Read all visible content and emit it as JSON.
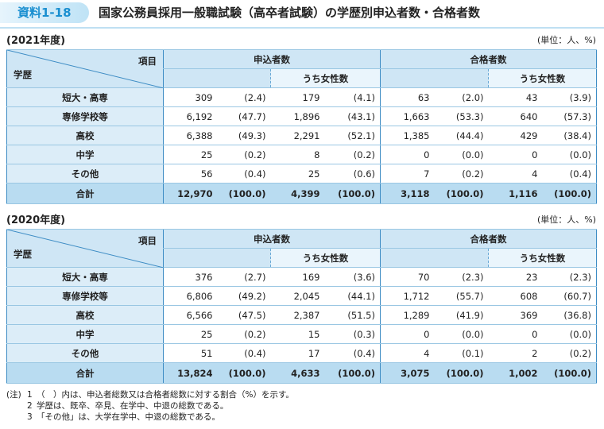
{
  "header": {
    "badge": "資料1-18",
    "title": "国家公務員採用一般職試験（高卒者試験）の学歴別申込者数・合格者数"
  },
  "tables": [
    {
      "year": "(2021年度)",
      "unit": "(単位：人、%)",
      "header": {
        "item": "項目",
        "category": "学歴",
        "applicants": "申込者数",
        "female_applicants": "うち女性数",
        "passers": "合格者数",
        "female_passers": "うち女性数"
      },
      "rows": [
        {
          "label": "短大・高専",
          "cells": [
            "309",
            "(2.4)",
            "179",
            "(4.1)",
            "63",
            "(2.0)",
            "43",
            "(3.9)"
          ]
        },
        {
          "label": "専修学校等",
          "cells": [
            "6,192",
            "(47.7)",
            "1,896",
            "(43.1)",
            "1,663",
            "(53.3)",
            "640",
            "(57.3)"
          ]
        },
        {
          "label": "高校",
          "cells": [
            "6,388",
            "(49.3)",
            "2,291",
            "(52.1)",
            "1,385",
            "(44.4)",
            "429",
            "(38.4)"
          ]
        },
        {
          "label": "中学",
          "cells": [
            "25",
            "(0.2)",
            "8",
            "(0.2)",
            "0",
            "(0.0)",
            "0",
            "(0.0)"
          ]
        },
        {
          "label": "その他",
          "cells": [
            "56",
            "(0.4)",
            "25",
            "(0.6)",
            "7",
            "(0.2)",
            "4",
            "(0.4)"
          ]
        },
        {
          "label": "合計",
          "cells": [
            "12,970",
            "(100.0)",
            "4,399",
            "(100.0)",
            "3,118",
            "(100.0)",
            "1,116",
            "(100.0)"
          ]
        }
      ]
    },
    {
      "year": "(2020年度)",
      "unit": "(単位：人、%)",
      "header": {
        "item": "項目",
        "category": "学歴",
        "applicants": "申込者数",
        "female_applicants": "うち女性数",
        "passers": "合格者数",
        "female_passers": "うち女性数"
      },
      "rows": [
        {
          "label": "短大・高専",
          "cells": [
            "376",
            "(2.7)",
            "169",
            "(3.6)",
            "70",
            "(2.3)",
            "23",
            "(2.3)"
          ]
        },
        {
          "label": "専修学校等",
          "cells": [
            "6,806",
            "(49.2)",
            "2,045",
            "(44.1)",
            "1,712",
            "(55.7)",
            "608",
            "(60.7)"
          ]
        },
        {
          "label": "高校",
          "cells": [
            "6,566",
            "(47.5)",
            "2,387",
            "(51.5)",
            "1,289",
            "(41.9)",
            "369",
            "(36.8)"
          ]
        },
        {
          "label": "中学",
          "cells": [
            "25",
            "(0.2)",
            "15",
            "(0.3)",
            "0",
            "(0.0)",
            "0",
            "(0.0)"
          ]
        },
        {
          "label": "その他",
          "cells": [
            "51",
            "(0.4)",
            "17",
            "(0.4)",
            "4",
            "(0.1)",
            "2",
            "(0.2)"
          ]
        },
        {
          "label": "合計",
          "cells": [
            "13,824",
            "(100.0)",
            "4,633",
            "(100.0)",
            "3,075",
            "(100.0)",
            "1,002",
            "(100.0)"
          ]
        }
      ]
    }
  ],
  "notes": {
    "marker": "(注)",
    "items": [
      {
        "num": "1",
        "text": "（　）内は、申込者総数又は合格者総数に対する割合（%）を示す。"
      },
      {
        "num": "2",
        "text": "学歴は、既卒、卒見、在学中、中退の総数である。"
      },
      {
        "num": "3",
        "text": "「その他」は、大学在学中、中退の総数である。"
      }
    ]
  }
}
